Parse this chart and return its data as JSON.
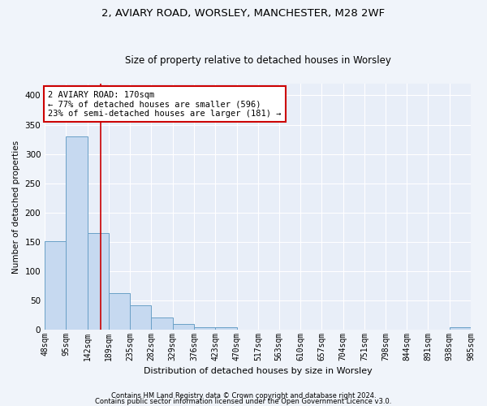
{
  "title1": "2, AVIARY ROAD, WORSLEY, MANCHESTER, M28 2WF",
  "title2": "Size of property relative to detached houses in Worsley",
  "xlabel": "Distribution of detached houses by size in Worsley",
  "ylabel": "Number of detached properties",
  "bin_edges": [
    48,
    95,
    142,
    189,
    235,
    282,
    329,
    376,
    423,
    470,
    517,
    563,
    610,
    657,
    704,
    751,
    798,
    844,
    891,
    938,
    985
  ],
  "bar_heights": [
    151,
    330,
    165,
    62,
    42,
    21,
    10,
    5,
    5,
    0,
    0,
    0,
    0,
    0,
    0,
    0,
    0,
    0,
    0,
    5
  ],
  "bar_color": "#c6d9f0",
  "bar_edge_color": "#6aa0c7",
  "property_size": 170,
  "red_line_color": "#cc0000",
  "annotation_line1": "2 AVIARY ROAD: 170sqm",
  "annotation_line2": "← 77% of detached houses are smaller (596)",
  "annotation_line3": "23% of semi-detached houses are larger (181) →",
  "annotation_box_color": "#cc0000",
  "ylim": [
    0,
    420
  ],
  "yticks": [
    0,
    50,
    100,
    150,
    200,
    250,
    300,
    350,
    400
  ],
  "footer1": "Contains HM Land Registry data © Crown copyright and database right 2024.",
  "footer2": "Contains public sector information licensed under the Open Government Licence v3.0.",
  "bg_color": "#f0f4fa",
  "plot_bg_color": "#e8eef8",
  "grid_color": "#ffffff",
  "title1_fontsize": 9.5,
  "title2_fontsize": 8.5,
  "xlabel_fontsize": 8,
  "ylabel_fontsize": 7.5,
  "tick_fontsize": 7,
  "annot_fontsize": 7.5,
  "footer_fontsize": 6
}
